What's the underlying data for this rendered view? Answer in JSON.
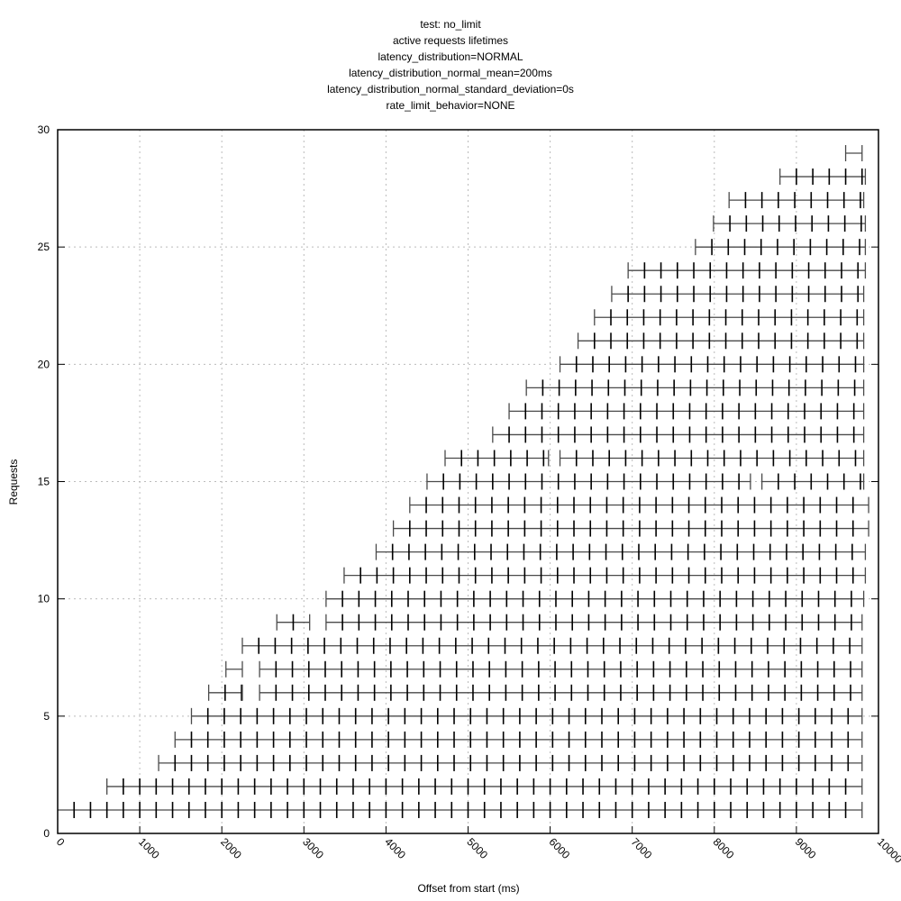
{
  "chart_data": {
    "type": "line",
    "subtype": "horizontal-lifetime-segments",
    "title": "test: no_limit",
    "subtitle_lines": [
      "active requests lifetimes",
      "latency_distribution=NORMAL",
      "latency_distribution_normal_mean=200ms",
      "latency_distribution_normal_standard_deviation=0s",
      "rate_limit_behavior=NONE"
    ],
    "xlabel": "Offset from start (ms)",
    "ylabel": "Requests",
    "xlim": [
      0,
      10000
    ],
    "ylim": [
      0,
      30
    ],
    "x_ticks": [
      0,
      1000,
      2000,
      3000,
      4000,
      5000,
      6000,
      7000,
      8000,
      9000,
      10000
    ],
    "y_ticks": [
      0,
      5,
      10,
      15,
      20,
      25,
      30
    ],
    "grid": true,
    "tick_interval_ms": 200,
    "rows": [
      {
        "level": 1,
        "segments": [
          [
            0,
            9800
          ]
        ]
      },
      {
        "level": 2,
        "segments": [
          [
            600,
            9800
          ]
        ]
      },
      {
        "level": 3,
        "segments": [
          [
            1230,
            9800
          ]
        ]
      },
      {
        "level": 4,
        "segments": [
          [
            1430,
            9800
          ]
        ]
      },
      {
        "level": 5,
        "segments": [
          [
            1630,
            9800
          ]
        ]
      },
      {
        "level": 6,
        "segments": [
          [
            1840,
            2250
          ],
          [
            2460,
            9800
          ]
        ]
      },
      {
        "level": 7,
        "segments": [
          [
            2050,
            2250
          ],
          [
            2460,
            9800
          ]
        ]
      },
      {
        "level": 8,
        "segments": [
          [
            2250,
            9800
          ]
        ]
      },
      {
        "level": 9,
        "segments": [
          [
            2670,
            3070
          ],
          [
            3270,
            9800
          ]
        ]
      },
      {
        "level": 10,
        "segments": [
          [
            3270,
            9820
          ]
        ]
      },
      {
        "level": 11,
        "segments": [
          [
            3490,
            9840
          ]
        ]
      },
      {
        "level": 12,
        "segments": [
          [
            3880,
            9840
          ]
        ]
      },
      {
        "level": 13,
        "segments": [
          [
            4090,
            9880
          ]
        ]
      },
      {
        "level": 14,
        "segments": [
          [
            4290,
            9880
          ]
        ]
      },
      {
        "level": 15,
        "segments": [
          [
            4500,
            8440
          ],
          [
            8580,
            9820
          ]
        ]
      },
      {
        "level": 16,
        "segments": [
          [
            4720,
            5980
          ],
          [
            6120,
            9820
          ]
        ]
      },
      {
        "level": 17,
        "segments": [
          [
            5300,
            9820
          ]
        ]
      },
      {
        "level": 18,
        "segments": [
          [
            5500,
            9820
          ]
        ]
      },
      {
        "level": 19,
        "segments": [
          [
            5710,
            9820
          ]
        ]
      },
      {
        "level": 20,
        "segments": [
          [
            6120,
            9820
          ]
        ]
      },
      {
        "level": 21,
        "segments": [
          [
            6340,
            9820
          ]
        ]
      },
      {
        "level": 22,
        "segments": [
          [
            6540,
            9820
          ]
        ]
      },
      {
        "level": 23,
        "segments": [
          [
            6750,
            9820
          ]
        ]
      },
      {
        "level": 24,
        "segments": [
          [
            6950,
            9840
          ]
        ]
      },
      {
        "level": 25,
        "segments": [
          [
            7770,
            9840
          ]
        ]
      },
      {
        "level": 26,
        "segments": [
          [
            7990,
            9840
          ]
        ]
      },
      {
        "level": 27,
        "segments": [
          [
            8180,
            9820
          ]
        ]
      },
      {
        "level": 28,
        "segments": [
          [
            8800,
            9840
          ]
        ]
      },
      {
        "level": 29,
        "segments": [
          [
            9600,
            9800
          ]
        ]
      }
    ]
  },
  "colors": {
    "segment": "#4a4a4a",
    "tick": "#000000",
    "grid": "#bbbbbb",
    "axis": "#000000"
  }
}
